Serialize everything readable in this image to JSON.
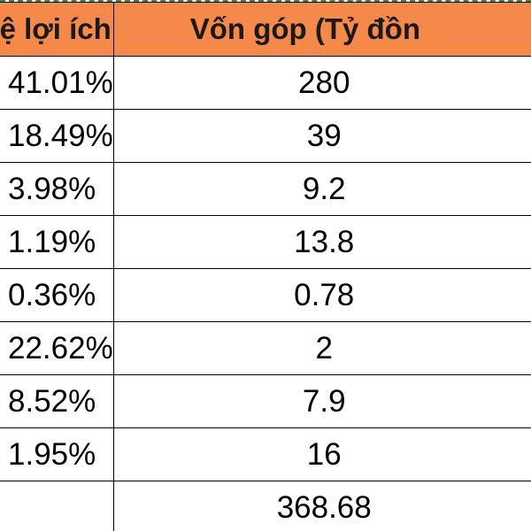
{
  "table": {
    "headers": [
      "ỷ lệ lợi ích",
      "Vốn góp (Tỷ đồn"
    ],
    "rows": [
      {
        "ratio": "41.01%",
        "capital": "280"
      },
      {
        "ratio": "18.49%",
        "capital": "39"
      },
      {
        "ratio": "3.98%",
        "capital": "9.2"
      },
      {
        "ratio": "1.19%",
        "capital": "13.8"
      },
      {
        "ratio": "0.36%",
        "capital": "0.78"
      },
      {
        "ratio": "22.62%",
        "capital": "2"
      },
      {
        "ratio": "8.52%",
        "capital": "7.9"
      },
      {
        "ratio": "1.95%",
        "capital": "16"
      }
    ],
    "total": {
      "ratio": "",
      "capital": "368.68"
    }
  },
  "colors": {
    "header_fill": "#f4894a",
    "selection_border": "#2e8b3e",
    "gridline": "#000000"
  }
}
